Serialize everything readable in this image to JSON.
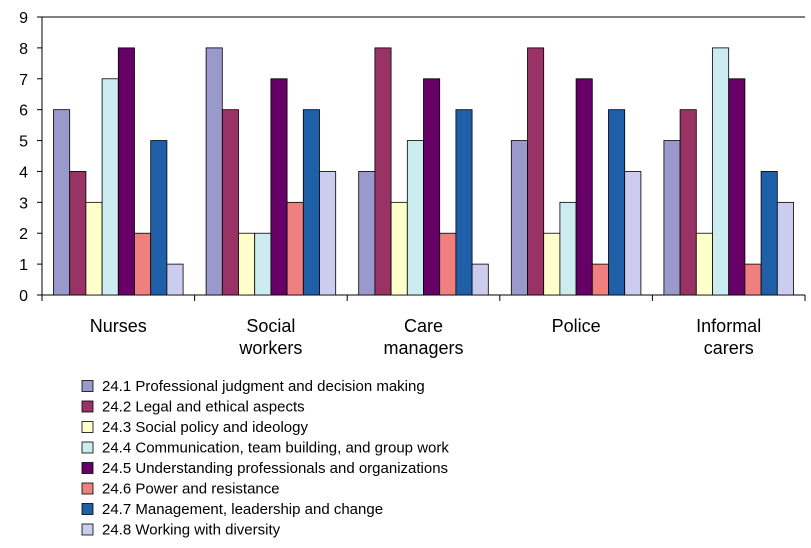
{
  "chart_data": {
    "type": "bar",
    "title": "",
    "xlabel": "",
    "ylabel": "",
    "ylim": [
      0,
      9
    ],
    "yticks": [
      0,
      1,
      2,
      3,
      4,
      5,
      6,
      7,
      8,
      9
    ],
    "grid": false,
    "legend_position": "bottom-left",
    "categories": [
      [
        "Nurses"
      ],
      [
        "Social",
        "workers"
      ],
      [
        "Care",
        "managers"
      ],
      [
        "Police"
      ],
      [
        "Informal",
        "carers"
      ]
    ],
    "series": [
      {
        "name": "24.1 Professional judgment and decision making",
        "color": "#9999cc",
        "values": [
          6,
          8,
          4,
          5,
          5
        ]
      },
      {
        "name": "24.2 Legal and ethical aspects",
        "color": "#993366",
        "values": [
          4,
          6,
          8,
          8,
          6
        ]
      },
      {
        "name": "24.3 Social policy and ideology",
        "color": "#ffffcc",
        "values": [
          3,
          2,
          3,
          2,
          2
        ]
      },
      {
        "name": "24.4 Communication, team building, and group work",
        "color": "#ccecf0",
        "values": [
          7,
          2,
          5,
          3,
          8
        ]
      },
      {
        "name": "24.5 Understanding professionals and organizations",
        "color": "#660066",
        "values": [
          8,
          7,
          7,
          7,
          7
        ]
      },
      {
        "name": "24.6 Power and resistance",
        "color": "#f08080",
        "values": [
          2,
          3,
          2,
          1,
          1
        ]
      },
      {
        "name": "24.7 Management, leadership and change",
        "color": "#1f5fa8",
        "values": [
          5,
          6,
          6,
          6,
          4
        ]
      },
      {
        "name": "24.8 Working with diversity",
        "color": "#ccccee",
        "values": [
          1,
          4,
          1,
          4,
          3
        ]
      }
    ]
  }
}
